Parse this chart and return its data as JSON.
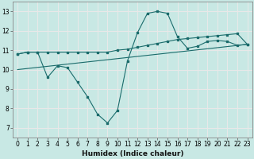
{
  "xlabel": "Humidex (Indice chaleur)",
  "ylabel": "",
  "background_color": "#c8e8e4",
  "grid_color": "#e8e8e8",
  "line_color": "#1a6b6b",
  "xlim": [
    -0.5,
    23.5
  ],
  "ylim": [
    6.5,
    13.5
  ],
  "yticks": [
    7,
    8,
    9,
    10,
    11,
    12,
    13
  ],
  "xticks": [
    0,
    1,
    2,
    3,
    4,
    5,
    6,
    7,
    8,
    9,
    10,
    11,
    12,
    13,
    14,
    15,
    16,
    17,
    18,
    19,
    20,
    21,
    22,
    23
  ],
  "series1_x": [
    0,
    1,
    2,
    3,
    4,
    5,
    6,
    7,
    8,
    9,
    10,
    11,
    12,
    13,
    14,
    15,
    16,
    17,
    18,
    19,
    20,
    21,
    22,
    23
  ],
  "series1_y": [
    10.8,
    10.9,
    10.9,
    9.6,
    10.2,
    10.1,
    9.35,
    8.6,
    7.7,
    7.25,
    7.9,
    10.45,
    11.9,
    12.9,
    13.0,
    12.9,
    11.7,
    11.1,
    11.2,
    11.45,
    11.5,
    11.45,
    11.25,
    11.3
  ],
  "series2_x": [
    0,
    1,
    2,
    3,
    4,
    5,
    6,
    7,
    8,
    9,
    10,
    11,
    12,
    13,
    14,
    15,
    16,
    17,
    18,
    19,
    20,
    21,
    22,
    23
  ],
  "series2_y": [
    10.8,
    10.9,
    10.9,
    10.9,
    10.9,
    10.9,
    10.9,
    10.9,
    10.9,
    10.9,
    11.0,
    11.05,
    11.15,
    11.25,
    11.35,
    11.45,
    11.55,
    11.6,
    11.65,
    11.7,
    11.75,
    11.8,
    11.85,
    11.3
  ],
  "series3_x": [
    0,
    23
  ],
  "series3_y": [
    10.0,
    11.3
  ],
  "xlabel_fontsize": 6.5,
  "tick_fontsize": 5.5
}
